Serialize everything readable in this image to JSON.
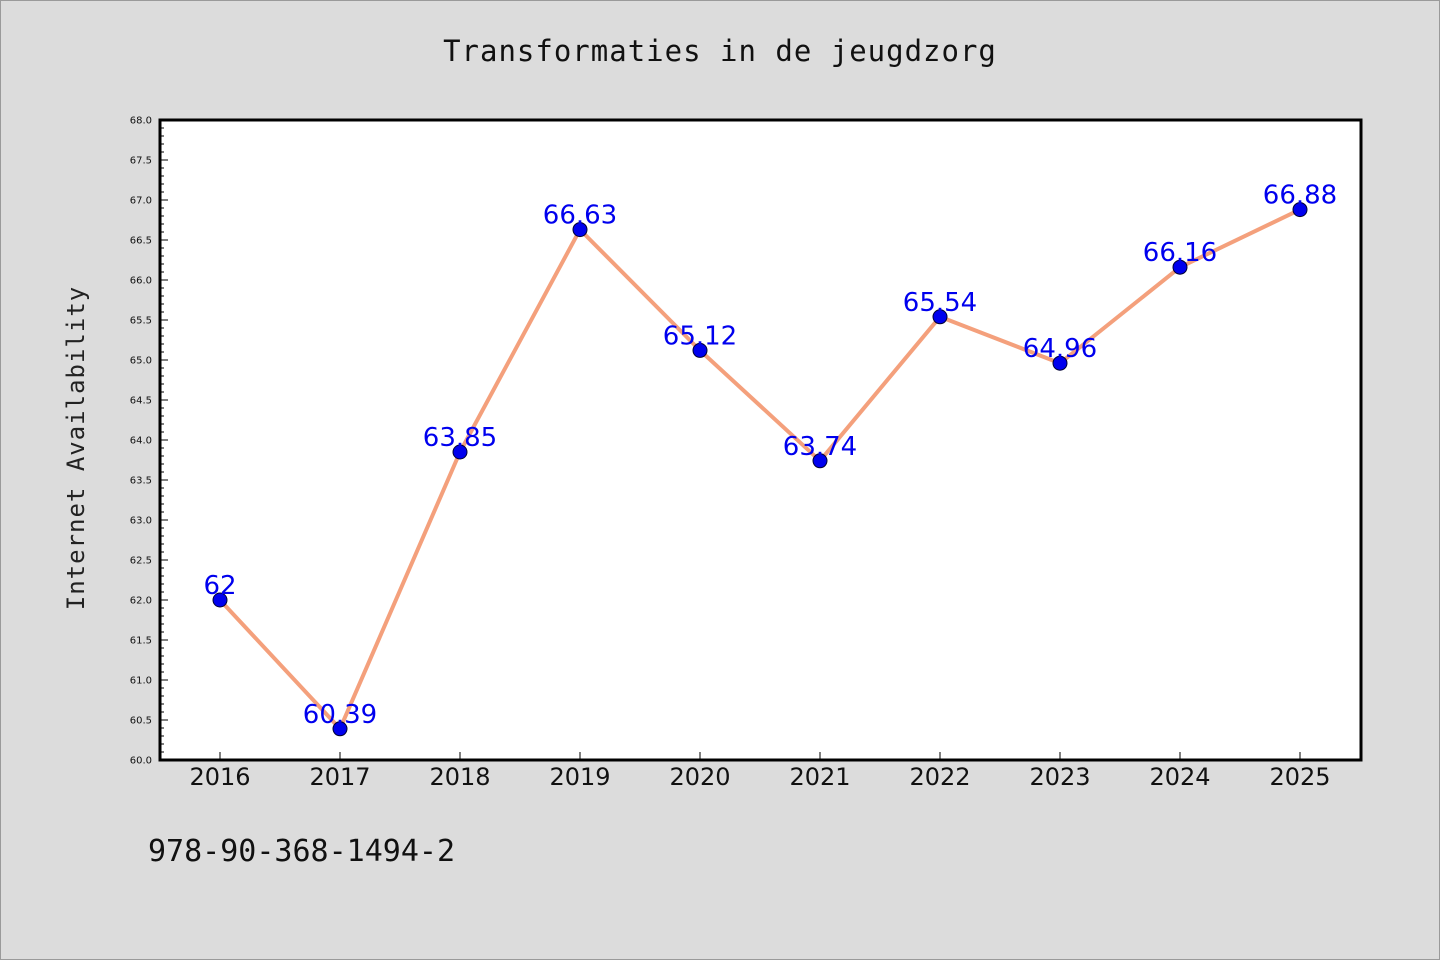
{
  "chart_data": {
    "type": "line",
    "title": "Transformaties in de jeugdzorg",
    "xlabel": "",
    "ylabel": "Internet Availability",
    "x": [
      "2016",
      "2017",
      "2018",
      "2019",
      "2020",
      "2021",
      "2022",
      "2023",
      "2024",
      "2025"
    ],
    "values": [
      62,
      60.39,
      63.85,
      66.63,
      65.12,
      63.74,
      65.54,
      64.96,
      66.16,
      66.88
    ],
    "data_labels": [
      "62",
      "60.39",
      "63.85",
      "66.63",
      "65.12",
      "63.74",
      "65.54",
      "64.96",
      "66.16",
      "66.88"
    ],
    "ylim": [
      60.0,
      68.0
    ],
    "yticks": [
      "60.0",
      "60.5",
      "61.0",
      "61.5",
      "62.0",
      "62.5",
      "63.0",
      "63.5",
      "64.0",
      "64.5",
      "65.0",
      "65.5",
      "66.0",
      "66.5",
      "67.0",
      "67.5",
      "68.0"
    ],
    "grid": false,
    "legend": "none",
    "line_color": "#f4a07c",
    "marker_color": "#0000ee",
    "label_color": "#0000ee"
  },
  "footer": {
    "isbn": "978-90-368-1494-2"
  }
}
